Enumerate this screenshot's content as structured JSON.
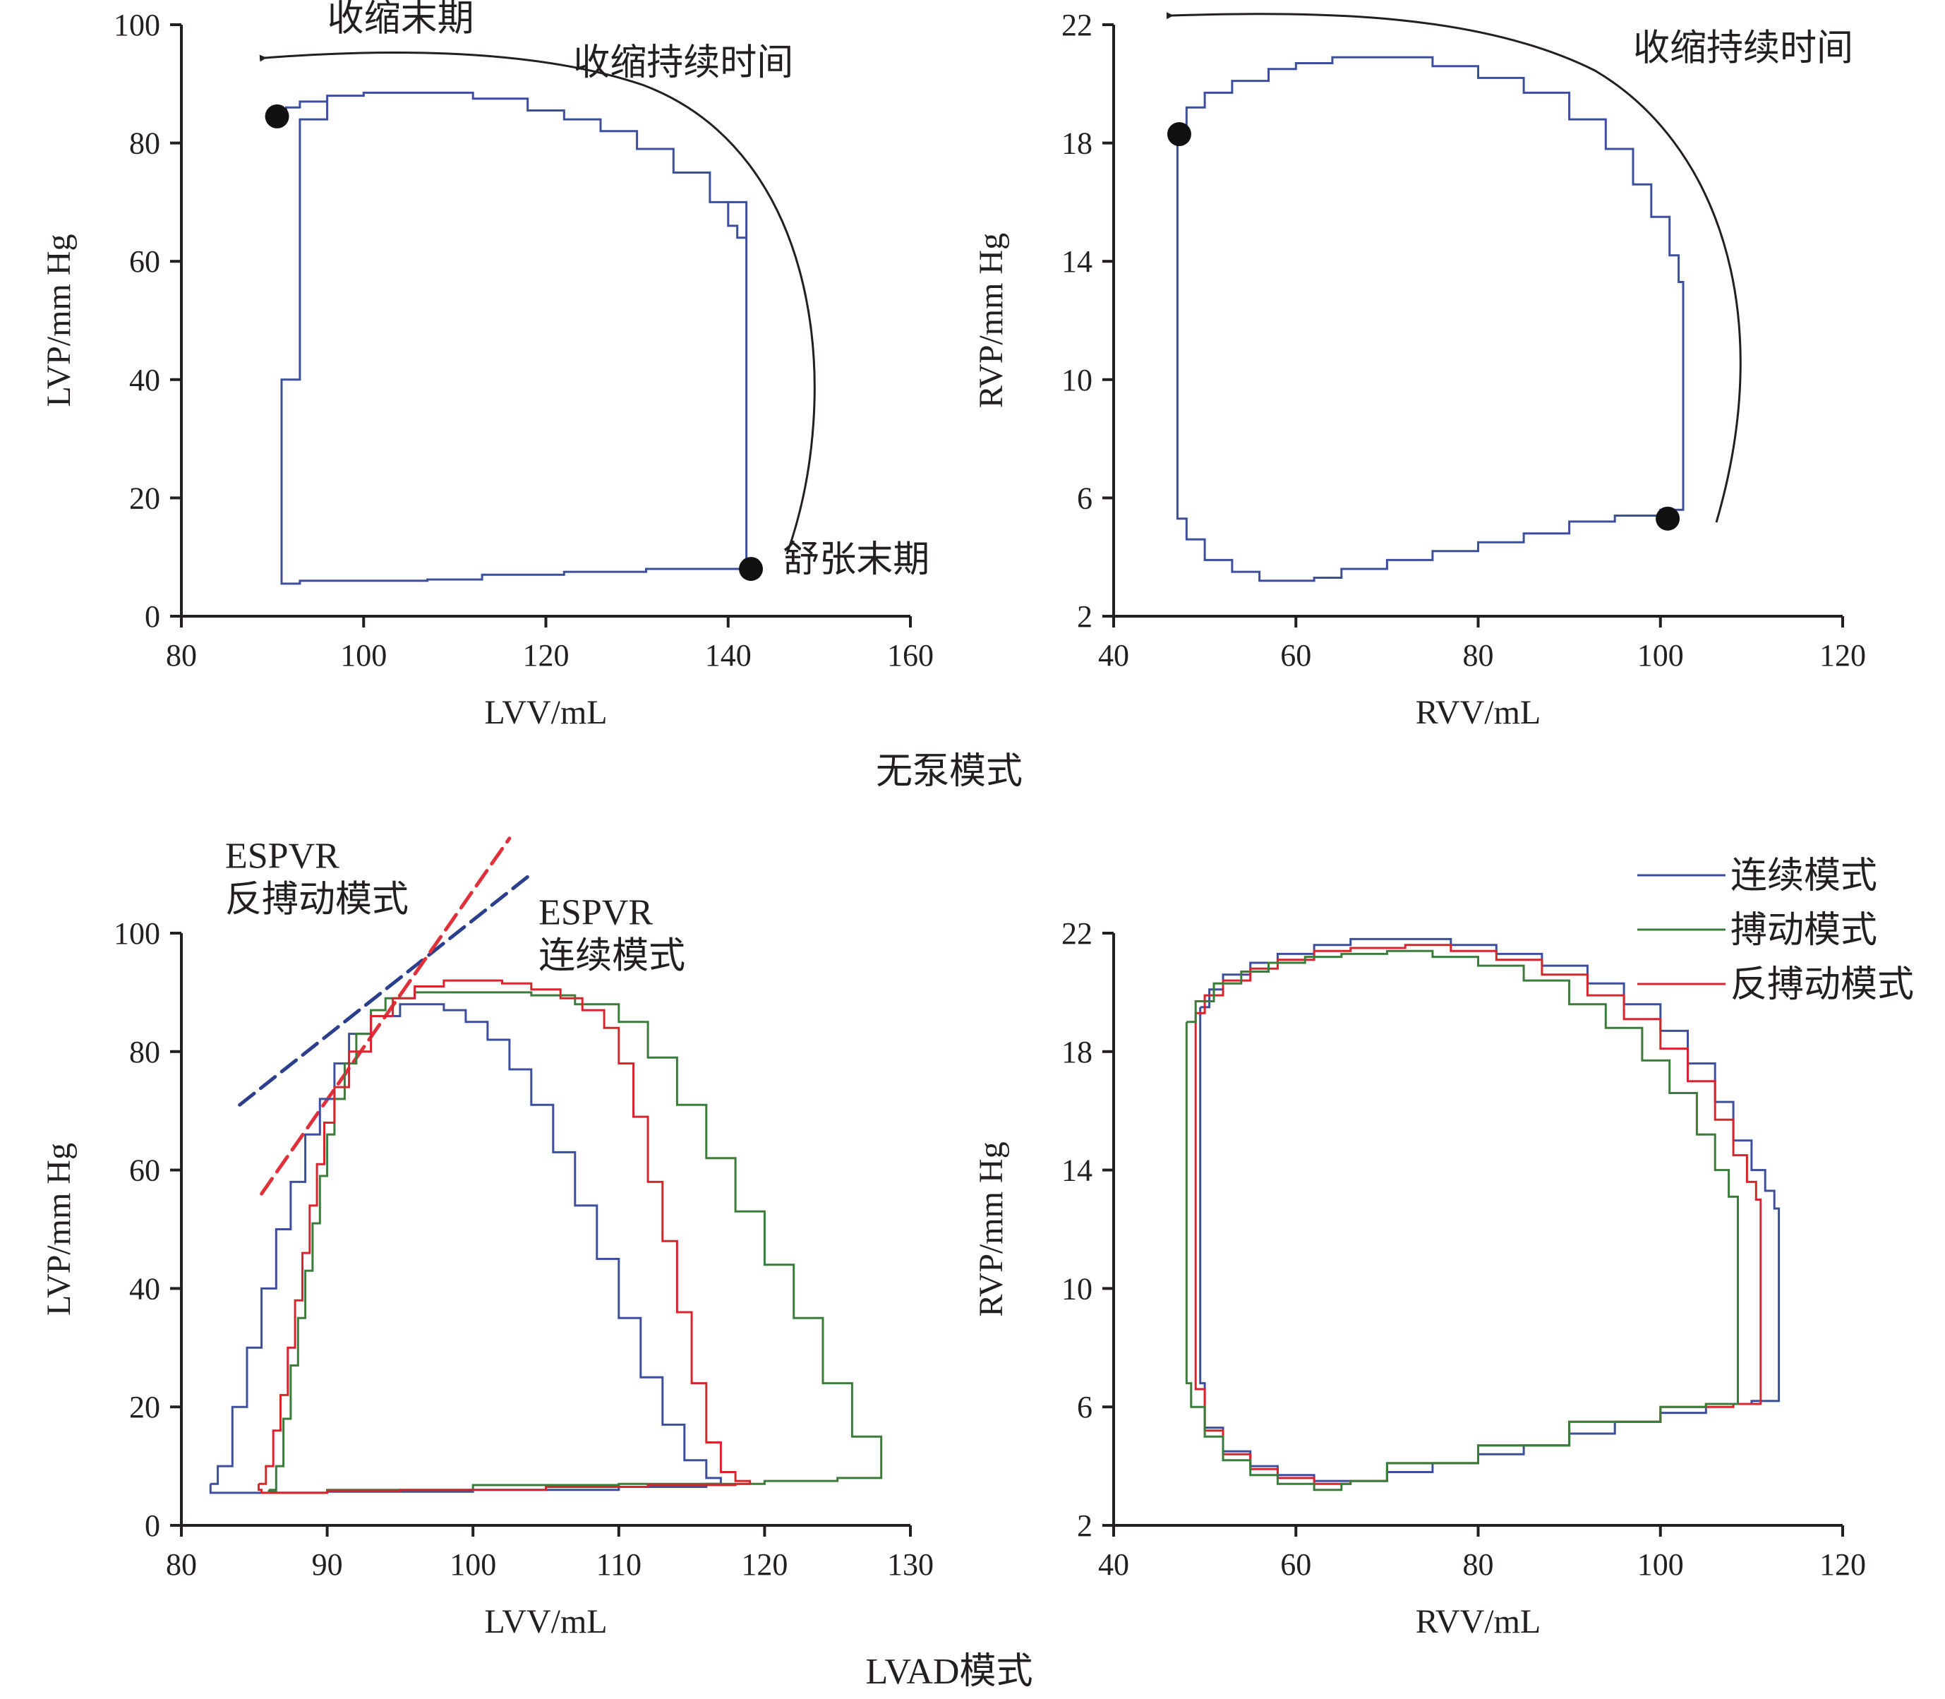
{
  "captions": {
    "top": "无泵模式",
    "bottom": "LVAD模式"
  },
  "colors": {
    "blue": "#3c4f9e",
    "green": "#3a7d3a",
    "red": "#d8242c",
    "axis": "#231f20",
    "dashBlue": "#2b3f8c",
    "dashRed": "#e0313a"
  },
  "chart_data": [
    {
      "id": "lv-nopump",
      "type": "line",
      "xlabel": "LVV/mL",
      "ylabel": "LVP/mm Hg",
      "xlim": [
        80,
        160
      ],
      "ylim": [
        0,
        100
      ],
      "xticks": [
        80,
        100,
        120,
        140,
        160
      ],
      "yticks": [
        0,
        20,
        40,
        60,
        80,
        100
      ],
      "series": [
        {
          "color": "blue",
          "x": [
            91,
            91.5,
            93,
            96,
            100,
            107,
            112,
            118,
            122,
            126,
            130,
            134,
            138,
            140,
            141,
            142,
            142,
            142,
            138,
            131,
            122,
            113,
            107,
            93,
            91,
            91,
            91,
            93,
            96,
            100,
            107,
            112,
            118,
            122,
            126,
            130,
            134,
            138,
            142
          ],
          "y": [
            84,
            86,
            87,
            88,
            88.5,
            88.5,
            87.5,
            85.5,
            84,
            82,
            79,
            75,
            70,
            66,
            64,
            62,
            35,
            8,
            8,
            7.5,
            7,
            6.2,
            6,
            5.5,
            6.5,
            7,
            40,
            84,
            88,
            88.5,
            88.5,
            87.5,
            85.5,
            84,
            82,
            79,
            75,
            70,
            62
          ]
        }
      ],
      "markers": [
        {
          "x": 90.5,
          "y": 84.5
        },
        {
          "x": 142.5,
          "y": 8
        }
      ],
      "annotations": [
        {
          "text": "收缩末期",
          "x": 96,
          "y": 99
        },
        {
          "text": "收缩持续时间",
          "x": 123,
          "y": 91.5
        },
        {
          "text": "舒张末期",
          "x": 146,
          "y": 7.5
        }
      ]
    },
    {
      "id": "rv-nopump",
      "type": "line",
      "xlabel": "RVV/mL",
      "ylabel": "RVP/mm Hg",
      "xlim": [
        40,
        120
      ],
      "ylim": [
        2,
        22
      ],
      "xticks": [
        40,
        60,
        80,
        100,
        120
      ],
      "yticks": [
        2,
        6,
        10,
        14,
        18,
        22
      ],
      "series": [
        {
          "color": "blue",
          "x": [
            47,
            48,
            50,
            53,
            57,
            60,
            64,
            70,
            75,
            80,
            85,
            90,
            94,
            97,
            99,
            101,
            102,
            102.5,
            102.5,
            102.5,
            100,
            95,
            90,
            85,
            80,
            75,
            70,
            65,
            62,
            59,
            56,
            53,
            50,
            48,
            47,
            47
          ],
          "y": [
            18.5,
            19.2,
            19.7,
            20.1,
            20.5,
            20.7,
            20.9,
            20.9,
            20.6,
            20.2,
            19.7,
            18.8,
            17.8,
            16.6,
            15.5,
            14.2,
            13.3,
            12.6,
            8,
            5.6,
            5.4,
            5.2,
            4.8,
            4.5,
            4.2,
            3.9,
            3.6,
            3.3,
            3.2,
            3.2,
            3.5,
            3.9,
            4.6,
            5.3,
            6.3,
            18.5
          ]
        }
      ],
      "markers": [
        {
          "x": 47.2,
          "y": 18.3
        },
        {
          "x": 100.8,
          "y": 5.3
        }
      ],
      "annotations": [
        {
          "text": "收缩持续时间",
          "x": 97,
          "y": 20.8
        }
      ]
    },
    {
      "id": "lv-lvad",
      "type": "line",
      "xlabel": "LVV/mL",
      "ylabel": "LVP/mm Hg",
      "xlim": [
        80,
        130
      ],
      "ylim": [
        0,
        100
      ],
      "xticks": [
        80,
        90,
        100,
        110,
        120,
        130
      ],
      "yticks": [
        0,
        20,
        40,
        60,
        80,
        100
      ],
      "series": [
        {
          "color": "blue",
          "x": [
            82,
            82.5,
            83.5,
            84.5,
            85.5,
            86.5,
            87.5,
            88.5,
            89.5,
            90.5,
            91.5,
            93,
            95,
            96.5,
            98,
            99.5,
            101,
            102.5,
            104,
            105.5,
            107,
            108.5,
            110,
            111.5,
            113,
            114.5,
            116,
            117,
            116,
            110,
            100,
            90,
            85,
            83,
            82
          ],
          "y": [
            7,
            10,
            20,
            30,
            40,
            50,
            58,
            66,
            72,
            78,
            83,
            86,
            88,
            88,
            87,
            85,
            82,
            77,
            71,
            63,
            54,
            45,
            35,
            25,
            17,
            11,
            8,
            7,
            6.5,
            6,
            5.7,
            5.5,
            5.5,
            5.5,
            7
          ]
        },
        {
          "color": "green",
          "x": [
            86,
            86.5,
            87,
            87.5,
            88,
            88.5,
            89,
            89.5,
            90,
            90.5,
            91.2,
            92,
            93,
            94,
            96,
            100,
            104,
            107,
            110,
            112,
            114,
            116,
            118,
            120,
            122,
            124,
            126,
            128,
            125,
            120,
            110,
            100,
            90,
            88,
            86.5,
            86
          ],
          "y": [
            6,
            10,
            18,
            27,
            35,
            43,
            51,
            59,
            66,
            72,
            78,
            83,
            87,
            89,
            90,
            90,
            89.5,
            88,
            85,
            79,
            71,
            62,
            53,
            44,
            35,
            24,
            15,
            8,
            7.5,
            7,
            6.8,
            6,
            5.5,
            5.5,
            5.8,
            6
          ]
        },
        {
          "color": "red",
          "x": [
            85.3,
            85.8,
            86.3,
            86.8,
            87.3,
            87.8,
            88.3,
            88.8,
            89.3,
            89.8,
            90.5,
            91.5,
            93,
            94.5,
            96,
            98,
            100,
            102,
            104,
            106,
            107.5,
            109,
            110,
            111,
            112,
            113,
            114,
            115,
            116,
            117,
            118,
            119,
            118,
            112,
            105,
            95,
            90,
            87,
            85.5,
            85.3
          ],
          "y": [
            7,
            10,
            16,
            22,
            30,
            38,
            46,
            54,
            61,
            68,
            74,
            80,
            86,
            89,
            91,
            92,
            92,
            91.5,
            90.5,
            89,
            87,
            84,
            78,
            69,
            58,
            48,
            36,
            24,
            14,
            9,
            7.5,
            7,
            6.8,
            6.5,
            6,
            5.8,
            5.5,
            5.5,
            6,
            7
          ]
        }
      ],
      "espvr": [
        {
          "label": "ESPVR 反搏动模式",
          "color": "dashBlue",
          "x": [
            84,
            104
          ],
          "y": [
            71,
            110
          ]
        },
        {
          "label": "ESPVR 连续模式",
          "color": "dashRed",
          "x": [
            85.5,
            102.5
          ],
          "y": [
            56,
            116
          ]
        }
      ],
      "annotations": [
        {
          "lines": [
            "ESPVR",
            "反搏动模式"
          ],
          "x": 83,
          "y": 111
        },
        {
          "lines": [
            "ESPVR",
            "连续模式"
          ],
          "x": 104.5,
          "y": 101.5
        }
      ]
    },
    {
      "id": "rv-lvad",
      "type": "line",
      "xlabel": "RVV/mL",
      "ylabel": "RVP/mm Hg",
      "xlim": [
        40,
        120
      ],
      "ylim": [
        2,
        22
      ],
      "xticks": [
        40,
        60,
        80,
        100,
        120
      ],
      "yticks": [
        2,
        6,
        10,
        14,
        18,
        22
      ],
      "legend": {
        "position": "top-right",
        "entries": [
          {
            "label": "连续模式",
            "color": "blue"
          },
          {
            "label": "搏动模式",
            "color": "green"
          },
          {
            "label": "反搏动模式",
            "color": "red"
          }
        ]
      },
      "series": [
        {
          "color": "blue",
          "x": [
            49.5,
            50.5,
            52,
            55,
            58,
            62,
            66,
            72,
            77,
            82,
            87,
            92,
            96,
            100,
            103,
            106,
            108,
            110,
            111.5,
            112.5,
            113,
            113,
            113,
            110,
            105,
            100,
            95,
            90,
            85,
            80,
            75,
            70,
            66,
            62,
            58,
            55,
            52,
            50,
            49.5,
            49.5
          ],
          "y": [
            19.5,
            20.1,
            20.6,
            21,
            21.3,
            21.6,
            21.8,
            21.8,
            21.6,
            21.3,
            20.9,
            20.3,
            19.6,
            18.7,
            17.6,
            16.3,
            15,
            14,
            13.3,
            12.7,
            12.5,
            9,
            6.2,
            6.1,
            5.8,
            5.5,
            5.1,
            4.7,
            4.4,
            4.1,
            3.8,
            3.5,
            3.5,
            3.7,
            4,
            4.5,
            5.3,
            6.8,
            8,
            19.5
          ]
        },
        {
          "color": "red",
          "x": [
            49,
            50,
            52,
            55,
            58,
            62,
            66,
            72,
            77,
            82,
            87,
            92,
            96,
            100,
            103,
            106,
            108,
            109.5,
            110.5,
            111,
            111,
            111,
            108,
            100,
            90,
            80,
            70,
            66,
            62,
            58,
            55,
            52,
            50,
            49,
            49
          ],
          "y": [
            19.3,
            19.9,
            20.4,
            20.8,
            21.1,
            21.4,
            21.5,
            21.6,
            21.4,
            21.1,
            20.6,
            19.9,
            19.1,
            18.1,
            17,
            15.7,
            14.5,
            13.6,
            13,
            12.6,
            9,
            6.1,
            6,
            5.5,
            4.7,
            4.1,
            3.5,
            3.4,
            3.6,
            3.9,
            4.4,
            5.2,
            6.6,
            8,
            19.3
          ]
        },
        {
          "color": "green",
          "x": [
            48,
            49,
            51,
            54,
            57,
            61,
            65,
            70,
            75,
            80,
            85,
            90,
            94,
            98,
            101,
            104,
            106,
            107.5,
            108.5,
            108.5,
            108.5,
            105,
            100,
            90,
            80,
            70,
            66,
            65,
            62,
            58,
            55,
            52,
            50,
            48.5,
            48
          ],
          "y": [
            19,
            19.7,
            20.3,
            20.7,
            21,
            21.2,
            21.3,
            21.4,
            21.2,
            20.9,
            20.4,
            19.6,
            18.8,
            17.7,
            16.6,
            15.2,
            14,
            13.1,
            12.4,
            9,
            6.1,
            6,
            5.5,
            4.7,
            4.1,
            3.5,
            3.4,
            3.2,
            3.4,
            3.7,
            4.2,
            5,
            6,
            6.8,
            19
          ]
        }
      ]
    }
  ]
}
